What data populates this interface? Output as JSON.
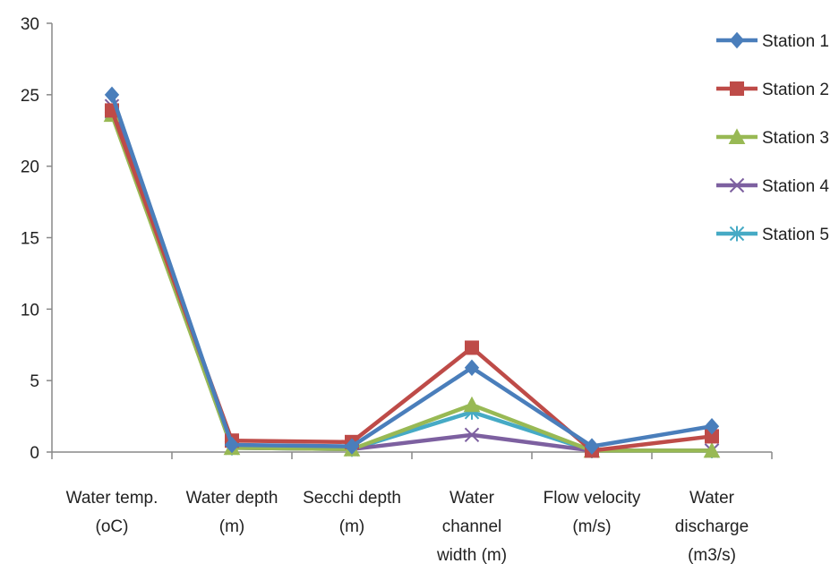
{
  "chart_data": {
    "type": "line",
    "categories": [
      [
        "Water temp.",
        "(oC)"
      ],
      [
        "Water depth",
        "(m)"
      ],
      [
        "Secchi depth",
        "(m)"
      ],
      [
        "Water",
        "channel",
        "width (m)"
      ],
      [
        "Flow velocity",
        "(m/s)"
      ],
      [
        "Water",
        "discharge",
        "(m3/s)"
      ]
    ],
    "ylim": [
      0,
      30
    ],
    "yticks": [
      0,
      5,
      10,
      15,
      20,
      25,
      30
    ],
    "grid": false,
    "legend_position": "right",
    "series": [
      {
        "name": "Station 1",
        "color": "#4a7ebb",
        "marker": "diamond",
        "values": [
          25,
          0.5,
          0.4,
          5.9,
          0.4,
          1.8
        ]
      },
      {
        "name": "Station 2",
        "color": "#be4b48",
        "marker": "square",
        "values": [
          23.9,
          0.8,
          0.7,
          7.3,
          0.1,
          1.1
        ]
      },
      {
        "name": "Station 3",
        "color": "#98b954",
        "marker": "triangle",
        "values": [
          23.6,
          0.3,
          0.2,
          3.3,
          0.1,
          0.1
        ]
      },
      {
        "name": "Station 4",
        "color": "#7d60a0",
        "marker": "x",
        "values": [
          24.2,
          0.3,
          0.2,
          1.2,
          0.1,
          0.1
        ]
      },
      {
        "name": "Station 5",
        "color": "#46aac5",
        "marker": "star",
        "values": [
          23.8,
          0.3,
          0.2,
          2.8,
          0.1,
          0.1
        ]
      }
    ]
  }
}
